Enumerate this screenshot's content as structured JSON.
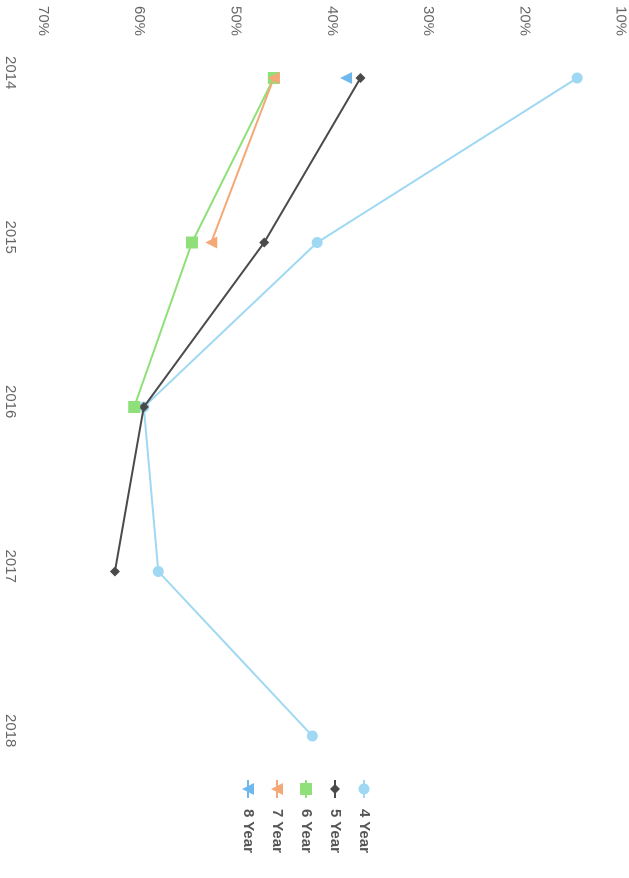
{
  "chart_data": {
    "type": "line",
    "orientation": "rotated-90-clockwise",
    "categories": [
      "2014",
      "2015",
      "2016",
      "2017",
      "2018"
    ],
    "y_ticks": [
      "10%",
      "20%",
      "30%",
      "40%",
      "50%",
      "60%",
      "70%"
    ],
    "ylim": [
      10,
      70
    ],
    "grid": false,
    "legend_position": "bottom",
    "series": [
      {
        "name": "4 Year",
        "values": [
          14,
          41,
          59,
          57.5,
          41.5
        ],
        "color": "#9fd8f2",
        "marker": "circle"
      },
      {
        "name": "5 Year",
        "values": [
          36.5,
          46.5,
          59,
          62,
          null
        ],
        "color": "#4a4a4a",
        "marker": "diamond"
      },
      {
        "name": "6 Year",
        "values": [
          45.5,
          54,
          60,
          null,
          null
        ],
        "color": "#8fe07a",
        "marker": "square"
      },
      {
        "name": "7 Year",
        "values": [
          45.5,
          52,
          null,
          null,
          null
        ],
        "color": "#f5a877",
        "marker": "triangle"
      },
      {
        "name": "8 Year",
        "values": [
          38,
          null,
          null,
          null,
          null
        ],
        "color": "#6fb8ee",
        "marker": "triangle"
      }
    ]
  }
}
